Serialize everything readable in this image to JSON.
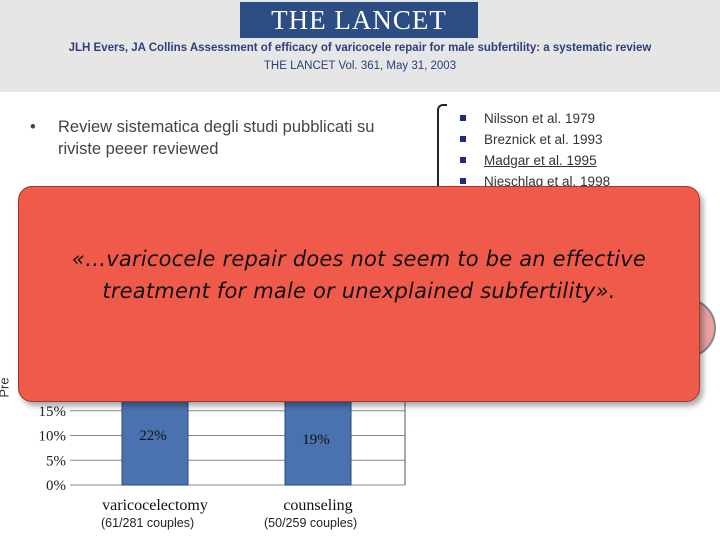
{
  "header": {
    "logo": "THE LANCET",
    "citation_line1": "JLH Evers, JA Collins Assessment of efficacy of varicocele repair for male subfertility: a systematic review",
    "citation_line2": "THE LANCET Vol. 361, May 31, 2003"
  },
  "bullet": {
    "symbol": "•",
    "text": "Review sistematica degli studi pubblicati su riviste peeer reviewed"
  },
  "studies": [
    {
      "label": "Nilsson et al. 1979",
      "underlined": false
    },
    {
      "label": "Breznick et al. 1993",
      "underlined": false
    },
    {
      "label": "Madgar et al. 1995",
      "underlined": true
    },
    {
      "label": "Nieschlag et al. 1998",
      "underlined": true
    }
  ],
  "callout": {
    "line1": "«…varicocele repair does not seem to be an effective",
    "line2": "treatment for male or unexplained subfertility»."
  },
  "chart_data": {
    "type": "bar",
    "ylabel_visible": "Pre",
    "categories": [
      "varicocelectomy",
      "counseling"
    ],
    "category_counts": [
      "(61/281 couples)",
      "(50/259 couples)"
    ],
    "values": [
      22,
      19
    ],
    "value_labels": [
      "22%",
      "19%"
    ],
    "yticks_visible": [
      "15%",
      "10%",
      "5%",
      "0%"
    ],
    "ylim": [
      0,
      25
    ],
    "grid": true,
    "bar_color": "#4a72b0"
  },
  "colors": {
    "callout_bg": "#f05a4a",
    "header_bg": "#e6e6e6",
    "logo_bg": "#2d4d85",
    "citation_text": "#2d3d80"
  }
}
